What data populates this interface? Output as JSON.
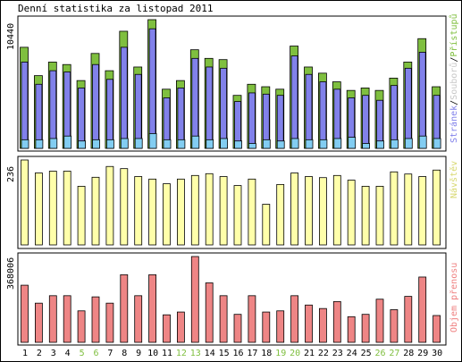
{
  "chart_data": [
    {
      "type": "bar",
      "title": "Denní statistika za listopad 2011",
      "ymax_label": "10440",
      "ymax": 10440,
      "legend": [
        {
          "label": "Stránek",
          "color": "#8181ea"
        },
        {
          "label": "Souborů",
          "color": "#ececec"
        },
        {
          "label": "Přístupů",
          "color": "#7fbf3f"
        }
      ],
      "categories": [
        "1",
        "2",
        "3",
        "4",
        "5",
        "6",
        "7",
        "8",
        "9",
        "10",
        "11",
        "12",
        "13",
        "14",
        "15",
        "16",
        "17",
        "18",
        "19",
        "20",
        "21",
        "22",
        "23",
        "24",
        "25",
        "26",
        "27",
        "28",
        "29",
        "30"
      ],
      "weekend_days": [
        "5",
        "6",
        "12",
        "13",
        "19",
        "20",
        "26",
        "27"
      ],
      "series": [
        {
          "name": "Přístupů",
          "color": "#7fbf3f",
          "values": [
            8200,
            5900,
            7000,
            6800,
            5500,
            7700,
            6300,
            9500,
            6600,
            10440,
            4800,
            5500,
            8000,
            7300,
            7200,
            4300,
            5200,
            5000,
            4800,
            8300,
            6600,
            6100,
            5400,
            4700,
            4900,
            4700,
            5700,
            7000,
            8900,
            5000
          ]
        },
        {
          "name": "Stránek",
          "color": "#8181ea",
          "values": [
            7000,
            5200,
            6300,
            6200,
            4900,
            6800,
            5600,
            8200,
            6000,
            9700,
            4100,
            4900,
            7300,
            6600,
            6500,
            3800,
            4500,
            4400,
            4300,
            7500,
            6000,
            5400,
            4800,
            4100,
            4300,
            3900,
            5100,
            6500,
            7800,
            4300
          ]
        },
        {
          "name": "Souborů",
          "color": "#82cdf2",
          "values": [
            700,
            700,
            800,
            1000,
            600,
            700,
            700,
            800,
            800,
            1200,
            700,
            700,
            1000,
            700,
            800,
            600,
            400,
            700,
            600,
            800,
            700,
            700,
            800,
            900,
            400,
            600,
            700,
            800,
            1000,
            800
          ]
        }
      ]
    },
    {
      "type": "bar",
      "ymax_label": "236",
      "ymax": 236,
      "legend": [
        {
          "label": "Návštěv",
          "color": "#ffff99"
        }
      ],
      "categories": [
        "1",
        "2",
        "3",
        "4",
        "5",
        "6",
        "7",
        "8",
        "9",
        "10",
        "11",
        "12",
        "13",
        "14",
        "15",
        "16",
        "17",
        "18",
        "19",
        "20",
        "21",
        "22",
        "23",
        "24",
        "25",
        "26",
        "27",
        "28",
        "29",
        "30"
      ],
      "series": [
        {
          "name": "Návštěv",
          "color": "#ffffaa",
          "values": [
            236,
            200,
            205,
            205,
            163,
            188,
            218,
            212,
            190,
            183,
            170,
            183,
            193,
            198,
            190,
            165,
            183,
            113,
            168,
            200,
            190,
            187,
            193,
            180,
            163,
            163,
            203,
            197,
            190,
            208
          ]
        }
      ]
    },
    {
      "type": "bar",
      "ymax_label": "368006",
      "ymax": 368006,
      "legend": [
        {
          "label": "Objem přenosu",
          "color": "#ef8080"
        }
      ],
      "categories": [
        "1",
        "2",
        "3",
        "4",
        "5",
        "6",
        "7",
        "8",
        "9",
        "10",
        "11",
        "12",
        "13",
        "14",
        "15",
        "16",
        "17",
        "18",
        "19",
        "20",
        "21",
        "22",
        "23",
        "24",
        "25",
        "26",
        "27",
        "28",
        "29",
        "30"
      ],
      "series": [
        {
          "name": "Objem přenosu",
          "color": "#ee8585",
          "values": [
            245000,
            168000,
            200000,
            200000,
            135000,
            195000,
            168000,
            290000,
            200000,
            290000,
            118000,
            130000,
            368006,
            255000,
            200000,
            120000,
            200000,
            130000,
            135000,
            200000,
            160000,
            145000,
            175000,
            110000,
            120000,
            185000,
            140000,
            197000,
            280000,
            115000
          ]
        }
      ]
    }
  ]
}
